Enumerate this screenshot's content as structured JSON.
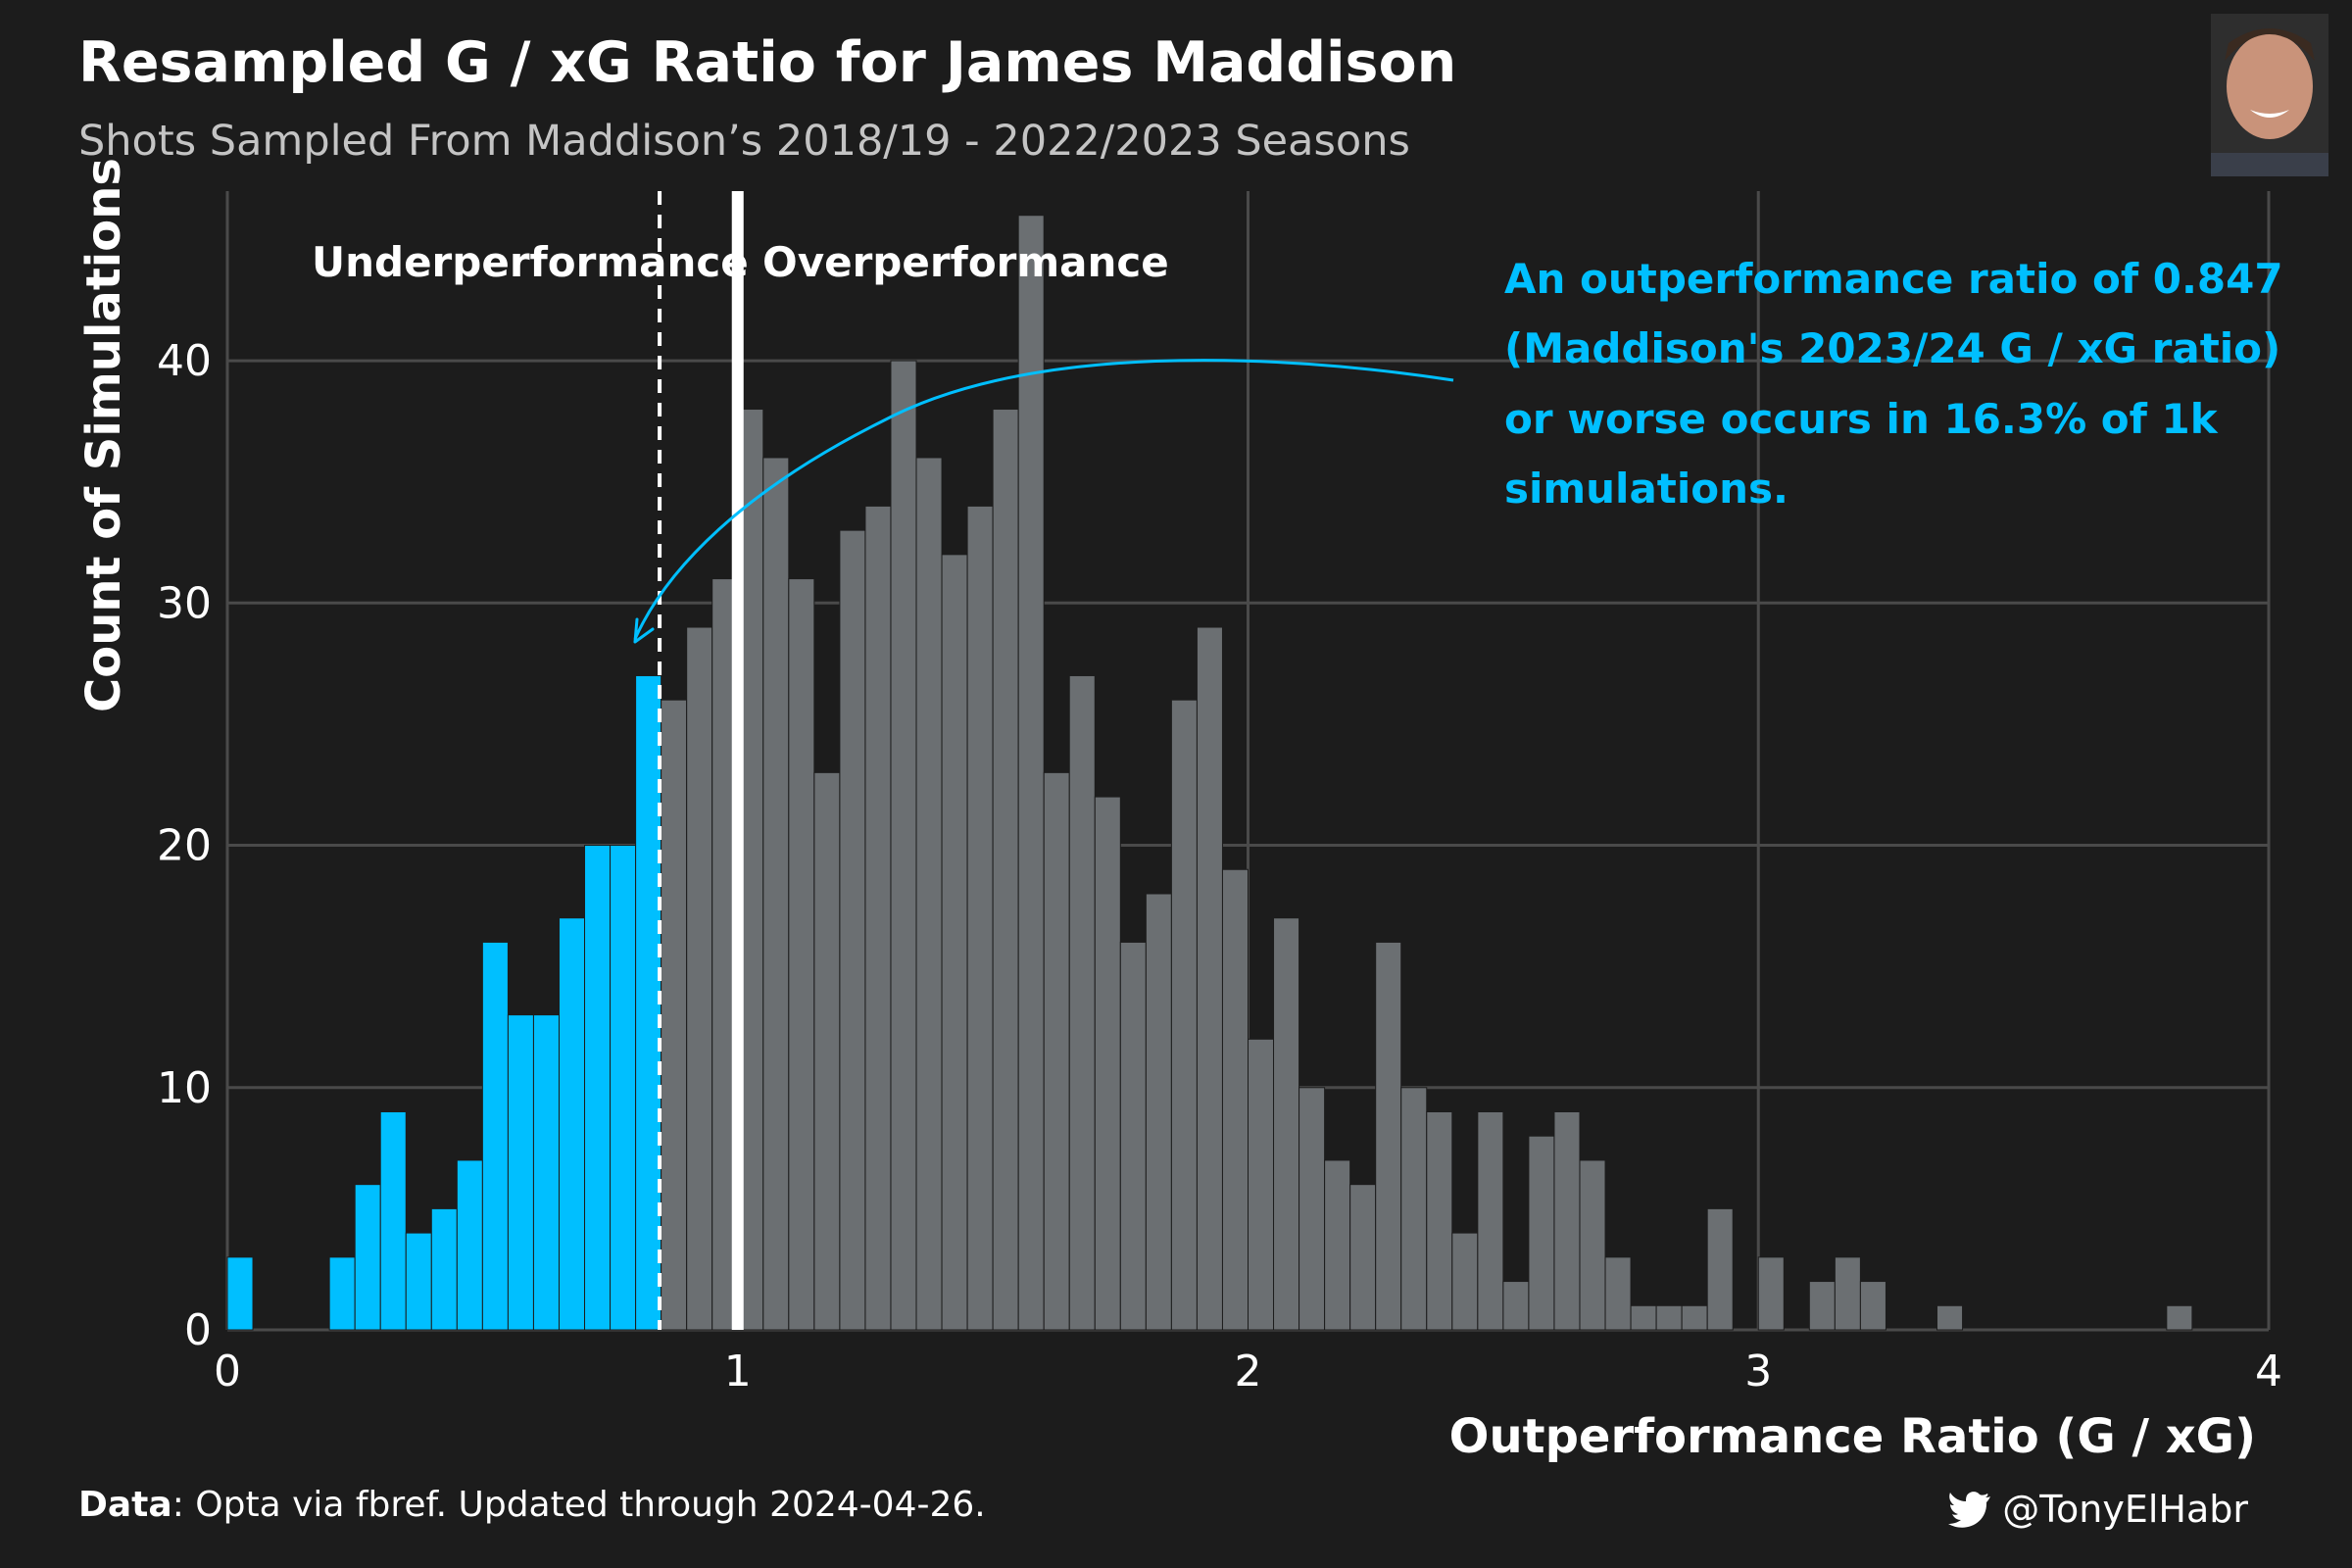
{
  "header": {
    "title": "Resampled G / xG Ratio for James Maddison",
    "subtitle": "Shots Sampled From Maddison’s 2018/19 - 2022/2023 Seasons"
  },
  "footer": {
    "data_label": "Data",
    "data_text": ": Opta via fbref. Updated through 2024-04-26.",
    "credit_handle": "@TonyElHabr"
  },
  "annotation": {
    "lines": [
      "An outperformance ratio of 0.847",
      "(Maddison's 2023/24 G / xG ratio)",
      "or worse occurs in 16.3% of 1k",
      "simulations."
    ]
  },
  "colors": {
    "background": "#1c1c1c",
    "grid": "#4a4a4a",
    "highlight_bar": "#00bfff",
    "default_bar": "#6b6f72",
    "annotation": "#00bfff",
    "reference_line": "#ffffff"
  },
  "icons": {
    "credit_icon": "twitter-bird-icon",
    "photo": "player-headshot"
  },
  "chart_data": {
    "type": "bar",
    "title": "Resampled G / xG Ratio for James Maddison",
    "subtitle": "Shots Sampled From Maddison’s 2018/19 - 2022/2023 Seasons",
    "xlabel": "Outperformance Ratio (G / xG)",
    "ylabel": "Count of Simulations",
    "xlim": [
      0,
      4
    ],
    "ylim": [
      0,
      47
    ],
    "xticks": [
      0,
      1,
      2,
      3,
      4
    ],
    "yticks": [
      0,
      10,
      20,
      30,
      40
    ],
    "grid": true,
    "bin_width": 0.05,
    "bin_starts": [
      0.0,
      0.05,
      0.1,
      0.15,
      0.2,
      0.25,
      0.3,
      0.35,
      0.4,
      0.45,
      0.5,
      0.55,
      0.6,
      0.65,
      0.7,
      0.75,
      0.8,
      0.85,
      0.9,
      0.95,
      1.0,
      1.05,
      1.1,
      1.15,
      1.2,
      1.25,
      1.3,
      1.35,
      1.4,
      1.45,
      1.5,
      1.55,
      1.6,
      1.65,
      1.7,
      1.75,
      1.8,
      1.85,
      1.9,
      1.95,
      2.0,
      2.05,
      2.1,
      2.15,
      2.2,
      2.25,
      2.3,
      2.35,
      2.4,
      2.45,
      2.5,
      2.55,
      2.6,
      2.65,
      2.7,
      2.75,
      2.8,
      2.85,
      2.9,
      2.95,
      3.0,
      3.05,
      3.1,
      3.15,
      3.2,
      3.25,
      3.3,
      3.35,
      3.4,
      3.45,
      3.5,
      3.55,
      3.6,
      3.65,
      3.7,
      3.75,
      3.8,
      3.85,
      3.9,
      3.95
    ],
    "counts": [
      3,
      0,
      0,
      0,
      3,
      6,
      9,
      4,
      5,
      7,
      16,
      13,
      13,
      17,
      20,
      20,
      27,
      26,
      29,
      31,
      38,
      36,
      31,
      23,
      33,
      34,
      40,
      36,
      32,
      34,
      38,
      46,
      23,
      27,
      22,
      16,
      18,
      26,
      29,
      19,
      12,
      17,
      10,
      7,
      6,
      16,
      10,
      9,
      4,
      9,
      2,
      8,
      9,
      7,
      3,
      1,
      1,
      1,
      5,
      0,
      3,
      0,
      2,
      3,
      2,
      0,
      0,
      1,
      0,
      0,
      0,
      0,
      0,
      0,
      0,
      0,
      1,
      0,
      0,
      0
    ],
    "highlight_threshold": 0.847,
    "reference_value": 1.0,
    "region_labels": [
      "Underperformance",
      "Overperformance"
    ],
    "annotation": "An outperformance ratio of 0.847 (Maddison's 2023/24 G / xG ratio) or worse occurs in 16.3% of 1k simulations.",
    "series": [
      {
        "color": "#00bfff"
      },
      {
        "color": "#6b6f72"
      }
    ]
  }
}
